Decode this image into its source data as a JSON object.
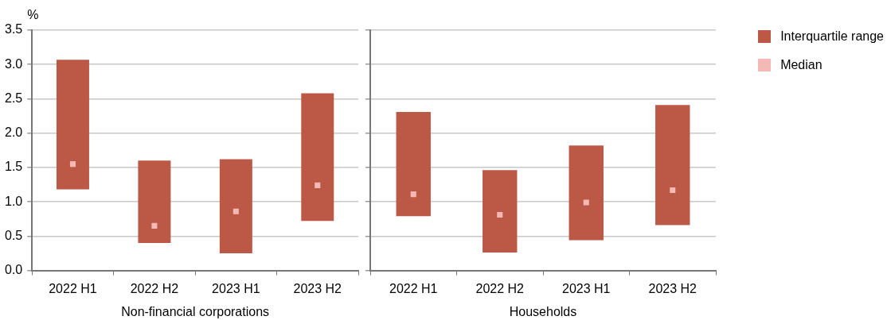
{
  "chart_data": [
    {
      "type": "bar",
      "xlabel": "Non-financial corporations",
      "ylabel": "%",
      "categories": [
        "2022 H1",
        "2022 H2",
        "2023 H1",
        "2023 H2"
      ],
      "base": [
        1.18,
        0.4,
        0.25,
        0.72
      ],
      "values": [
        1.89,
        1.2,
        1.37,
        1.86
      ],
      "color": "#bc5846",
      "series": [
        {
          "type": "scatter",
          "color": "#f5b9b5",
          "x": [
            "2022 H1",
            "2022 H2",
            "2023 H1",
            "2023 H2"
          ],
          "values": [
            1.55,
            0.65,
            0.86,
            1.24
          ]
        }
      ],
      "ylim": [
        0,
        3.5
      ],
      "yticks": [
        {
          "value": 0,
          "label": "0.0"
        },
        0.5,
        {
          "value": 1,
          "label": "1.0"
        },
        1.5,
        {
          "value": 2,
          "label": "2.0"
        },
        2.5,
        {
          "value": 3,
          "label": "3.0"
        },
        3.5
      ],
      "grid": "y",
      "marker": "square"
    },
    {
      "type": "bar",
      "xlabel": "Households",
      "categories": [
        "2022 H1",
        "2022 H2",
        "2023 H1",
        "2023 H2"
      ],
      "series": [
        {
          "name": "Interquartile range",
          "color": "#bc5846",
          "base": [
            0.79,
            0.26,
            0.44,
            0.66
          ],
          "values": [
            1.52,
            1.2,
            1.38,
            1.75
          ]
        },
        {
          "name": "Median",
          "type": "scatter",
          "color": "#f5b9b5",
          "x": [
            "2022 H1",
            "2022 H2",
            "2023 H1",
            "2023 H2"
          ],
          "values": [
            1.11,
            0.81,
            0.99,
            1.17
          ]
        }
      ],
      "ylim": [
        0,
        3.5
      ],
      "yticks": [
        0,
        0.5,
        1,
        1.5,
        2,
        2.5,
        3,
        3.5
      ],
      "grid": "y",
      "tick_labels": "x",
      "legend": "top right",
      "marker": "square"
    }
  ]
}
